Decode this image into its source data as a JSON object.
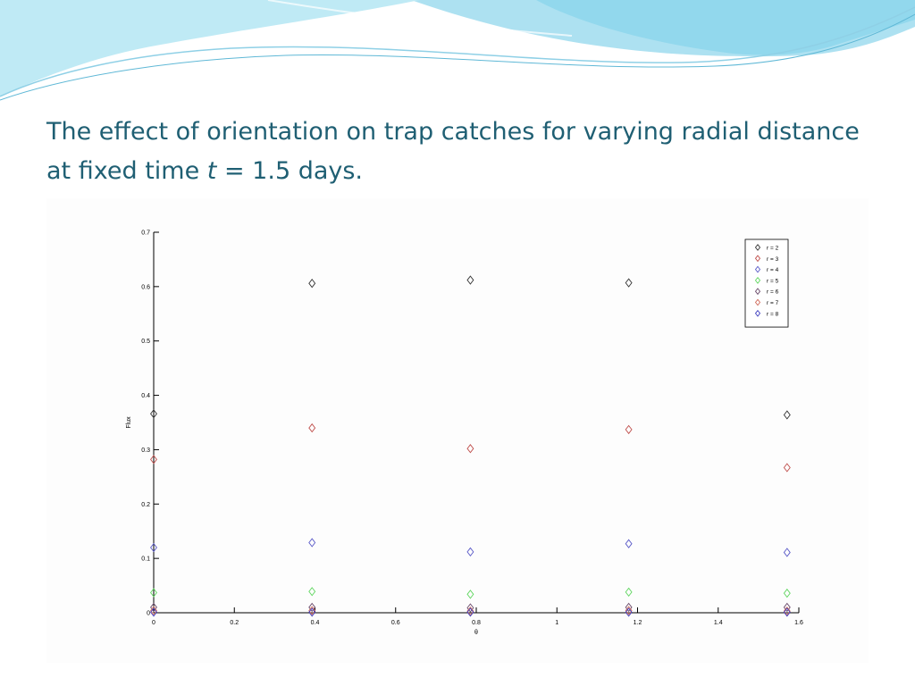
{
  "slide": {
    "title_part1": "The effect of orientation on trap catches for varying radial distance at fixed time ",
    "title_var": "t",
    "title_part2": " = 1.5 days."
  },
  "colors": {
    "title": "#1f5f73",
    "banner_dark": "#4bbfe0",
    "banner_light": "#bfeaf5"
  },
  "chart_data": {
    "type": "scatter",
    "marker": "diamond",
    "xlabel": "θ",
    "ylabel": "Flux",
    "xlim": [
      0,
      1.6
    ],
    "ylim": [
      0,
      0.7
    ],
    "xticks": [
      0,
      0.2,
      0.4,
      0.6,
      0.8,
      1,
      1.2,
      1.4,
      1.6
    ],
    "xtick_labels": [
      "0",
      "0.2",
      "0.4",
      "0.6",
      "0.8",
      "1",
      "1.2",
      "1.4",
      "1.6"
    ],
    "yticks": [
      0,
      0.1,
      0.2,
      0.3,
      0.4,
      0.5,
      0.6,
      0.7
    ],
    "ytick_labels": [
      "0",
      "0.1",
      "0.2",
      "0.3",
      "0.4",
      "0.5",
      "0.6",
      "0.7"
    ],
    "grid": false,
    "legend_position": "top-right",
    "x": [
      0,
      0.3927,
      0.7854,
      1.1781,
      1.5708
    ],
    "series": [
      {
        "name": "r = 2",
        "color": "#333333",
        "values": [
          0.366,
          0.606,
          0.612,
          0.607,
          0.364
        ]
      },
      {
        "name": "r = 3",
        "color": "#c0504d",
        "values": [
          0.282,
          0.34,
          0.302,
          0.337,
          0.267
        ]
      },
      {
        "name": "r = 4",
        "color": "#5a5ac8",
        "values": [
          0.12,
          0.129,
          0.112,
          0.127,
          0.111
        ]
      },
      {
        "name": "r = 5",
        "color": "#5fd65f",
        "values": [
          0.037,
          0.039,
          0.034,
          0.038,
          0.036
        ]
      },
      {
        "name": "r = 6",
        "color": "#6a4a6a",
        "values": [
          0.01,
          0.01,
          0.009,
          0.01,
          0.01
        ]
      },
      {
        "name": "r = 7",
        "color": "#d06a5a",
        "values": [
          0.004,
          0.004,
          0.003,
          0.004,
          0.003
        ]
      },
      {
        "name": "r = 8",
        "color": "#3f3fbf",
        "values": [
          0.001,
          0.001,
          0.001,
          0.001,
          0.001
        ]
      }
    ]
  }
}
